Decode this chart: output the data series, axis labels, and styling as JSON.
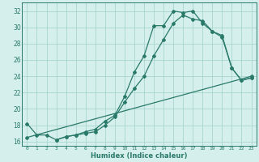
{
  "title": "",
  "xlabel": "Humidex (Indice chaleur)",
  "ylabel": "",
  "background_color": "#d5efec",
  "grid_color": "#a8d5cf",
  "line_color": "#2a7a6a",
  "xlim": [
    -0.5,
    23.5
  ],
  "ylim": [
    15.5,
    33.0
  ],
  "xticks": [
    0,
    1,
    2,
    3,
    4,
    5,
    6,
    7,
    8,
    9,
    10,
    11,
    12,
    13,
    14,
    15,
    16,
    17,
    18,
    19,
    20,
    21,
    22,
    23
  ],
  "yticks": [
    16,
    18,
    20,
    22,
    24,
    26,
    28,
    30,
    32
  ],
  "line1_x": [
    0,
    1,
    2,
    3,
    4,
    5,
    6,
    7,
    8,
    9,
    10,
    11,
    12,
    13,
    14,
    15,
    16,
    17,
    18,
    19,
    20,
    21,
    22,
    23
  ],
  "line1_y": [
    18.2,
    16.8,
    16.8,
    16.2,
    16.6,
    16.8,
    17.2,
    17.5,
    18.5,
    19.2,
    21.5,
    24.5,
    26.5,
    30.2,
    30.2,
    32.0,
    31.8,
    32.0,
    30.5,
    29.5,
    29.0,
    25.0,
    23.5,
    23.8
  ],
  "line2_x": [
    3,
    4,
    5,
    6,
    7,
    8,
    9,
    10,
    11,
    12,
    13,
    14,
    15,
    16,
    17,
    18,
    19,
    20,
    21,
    22,
    23
  ],
  "line2_y": [
    16.2,
    16.6,
    16.8,
    17.0,
    17.2,
    18.0,
    19.0,
    20.8,
    22.5,
    24.0,
    26.5,
    28.5,
    30.5,
    31.5,
    31.0,
    30.8,
    29.5,
    28.8,
    25.0,
    23.5,
    23.8
  ],
  "line3_x": [
    0,
    23
  ],
  "line3_y": [
    16.5,
    24.0
  ],
  "marker_size": 2.0,
  "line_width": 0.9
}
